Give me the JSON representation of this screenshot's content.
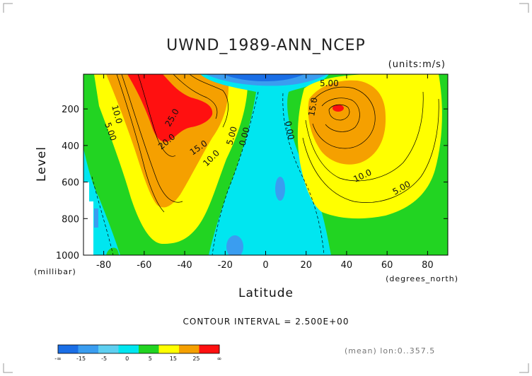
{
  "chart_data": {
    "type": "heatmap",
    "subtype": "filled-contour",
    "title": "UWND_1989-ANN_NCEP",
    "units": "(units:m/s)",
    "xlabel": "Latitude",
    "xunit": "(degrees_north)",
    "ylabel": "Level",
    "yunit": "(millibar)",
    "xlim": [
      -90,
      90
    ],
    "ylim": [
      1000,
      10
    ],
    "x_ticks": [
      "-80",
      "-60",
      "-40",
      "-20",
      "0",
      "20",
      "40",
      "60",
      "80"
    ],
    "y_ticks": [
      "200",
      "400",
      "600",
      "800",
      "1000"
    ],
    "contour_interval_text": "CONTOUR INTERVAL = 2.500E+00",
    "mean_text": "(mean) lon:0..357.5",
    "colorbar": {
      "labels": [
        "-∞",
        "-15",
        "-5",
        "0",
        "5",
        "15",
        "25",
        "∞"
      ],
      "colors": [
        "#1a6ee6",
        "#3a9df0",
        "#5ecff0",
        "#00e6f0",
        "#22d422",
        "#ffff00",
        "#f5a000",
        "#ff1010"
      ]
    },
    "jets": [
      {
        "lat": -55,
        "level": 200,
        "max_value": 27.5
      },
      {
        "lat": 35,
        "level": 200,
        "max_value": 25.0
      }
    ],
    "contour_labels": [
      "10.0",
      "5.00",
      "25.0",
      "20.0",
      "15.0",
      "10.0",
      "5.00",
      "0.00",
      "5.00",
      "15.0",
      "0.00",
      "10.0",
      "5.00"
    ]
  }
}
